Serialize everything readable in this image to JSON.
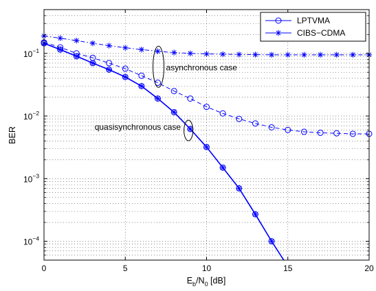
{
  "chart_data": {
    "type": "line",
    "x_label_main": "E",
    "x_label_sub1": "b",
    "x_label_mid": "/N",
    "x_label_sub2": "0",
    "x_label_unit": " [dB]",
    "ylabel": "BER",
    "xlim": [
      0,
      20
    ],
    "ylim": [
      5e-05,
      0.5
    ],
    "yscale": "log",
    "grid": true,
    "legend_position": "top-right",
    "x_ticks": [
      0,
      5,
      10,
      15,
      20
    ],
    "y_ticks": [
      {
        "value": 0.0001,
        "base": "10",
        "exp": "−4"
      },
      {
        "value": 0.001,
        "base": "10",
        "exp": "−3"
      },
      {
        "value": 0.01,
        "base": "10",
        "exp": "−2"
      },
      {
        "value": 0.1,
        "base": "10",
        "exp": "−1"
      }
    ],
    "series": [
      {
        "name": "LPTVMA",
        "marker": "circle",
        "color": "#0000ff",
        "lines": [
          {
            "style": "dashed",
            "x": [
              0,
              1,
              2,
              3,
              4,
              5,
              6,
              7,
              8,
              9,
              10,
              11,
              12,
              13,
              14,
              15,
              16,
              17,
              18,
              19,
              20
            ],
            "y": [
              0.15,
              0.125,
              0.1,
              0.085,
              0.07,
              0.057,
              0.044,
              0.034,
              0.025,
              0.019,
              0.014,
              0.011,
              0.009,
              0.0076,
              0.0066,
              0.006,
              0.0056,
              0.0054,
              0.0053,
              0.0052,
              0.0052
            ]
          },
          {
            "style": "solid",
            "x": [
              0,
              1,
              2,
              3,
              4,
              5,
              6,
              7,
              8,
              9,
              10,
              11,
              12,
              13,
              14,
              14.75
            ],
            "y": [
              0.145,
              0.115,
              0.09,
              0.07,
              0.055,
              0.042,
              0.03,
              0.019,
              0.0115,
              0.0062,
              0.0032,
              0.0015,
              0.0007,
              0.00027,
              0.0001,
              5e-05
            ]
          }
        ]
      },
      {
        "name": "CIBS−CDMA",
        "marker": "asterisk",
        "color": "#0000ff",
        "lines": [
          {
            "style": "dashdot",
            "x": [
              0,
              1,
              2,
              3,
              4,
              5,
              6,
              7,
              8,
              9,
              10,
              11,
              12,
              13,
              14,
              15,
              16,
              17,
              18,
              19,
              20
            ],
            "y": [
              0.19,
              0.175,
              0.16,
              0.145,
              0.133,
              0.123,
              0.115,
              0.108,
              0.103,
              0.1,
              0.098,
              0.097,
              0.096,
              0.0955,
              0.095,
              0.095,
              0.095,
              0.095,
              0.095,
              0.095,
              0.095
            ]
          },
          {
            "style": "solid",
            "x": [
              0,
              1,
              2,
              3,
              4,
              5,
              6,
              7,
              8,
              9,
              10,
              11,
              12,
              13,
              14,
              14.75
            ],
            "y": [
              0.145,
              0.115,
              0.09,
              0.07,
              0.055,
              0.042,
              0.03,
              0.019,
              0.0115,
              0.0062,
              0.0032,
              0.0015,
              0.0007,
              0.00027,
              0.0001,
              5e-05
            ]
          }
        ]
      }
    ],
    "annotations": [
      {
        "text": "asynchronous case",
        "ellipse_x": 7.0,
        "ellipse_y": 0.05
      },
      {
        "text": "quasisynchronous case",
        "ellipse_x": 8.8,
        "ellipse_y": 0.0065
      }
    ]
  }
}
